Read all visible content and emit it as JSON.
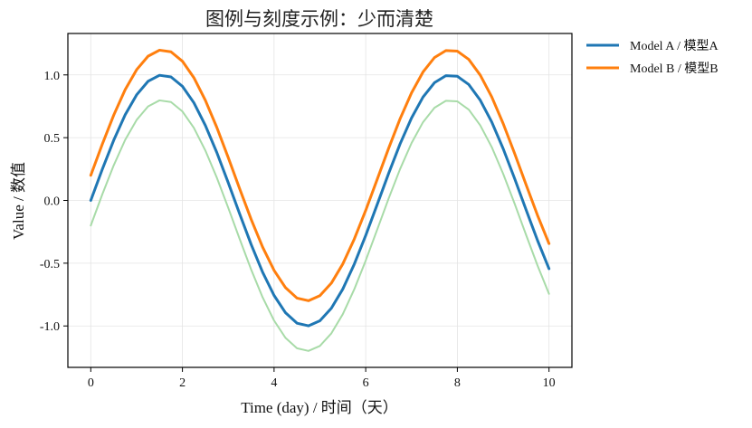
{
  "chart_data": {
    "type": "line",
    "title": "图例与刻度示例：少而清楚",
    "xlabel": "Time (day) / 时间（天）",
    "ylabel": "Value / 数值",
    "xlim": [
      -0.5,
      10.5
    ],
    "ylim": [
      -1.33,
      1.33
    ],
    "xticks": [
      0,
      2,
      4,
      6,
      8,
      10
    ],
    "xtick_labels": [
      "0",
      "2",
      "4",
      "6",
      "8",
      "10"
    ],
    "yticks": [
      -1.0,
      -0.5,
      0.0,
      0.5,
      1.0
    ],
    "ytick_labels": [
      "-1.0",
      "-0.5",
      "0.0",
      "0.5",
      "1.0"
    ],
    "grid": true,
    "legend_position": "outside-top-right",
    "series": [
      {
        "name": "Model A / 模型A",
        "color": "#1f77b4",
        "in_legend": true,
        "x": [
          0,
          0.25,
          0.5,
          0.75,
          1,
          1.25,
          1.5,
          1.75,
          2,
          2.25,
          2.5,
          2.75,
          3,
          3.25,
          3.5,
          3.75,
          4,
          4.25,
          4.5,
          4.75,
          5,
          5.25,
          5.5,
          5.75,
          6,
          6.25,
          6.5,
          6.75,
          7,
          7.25,
          7.5,
          7.75,
          8,
          8.25,
          8.5,
          8.75,
          9,
          9.25,
          9.5,
          9.75,
          10
        ],
        "y": [
          0.0,
          0.247,
          0.479,
          0.682,
          0.841,
          0.949,
          0.997,
          0.984,
          0.909,
          0.778,
          0.598,
          0.382,
          0.141,
          -0.108,
          -0.351,
          -0.572,
          -0.757,
          -0.895,
          -0.978,
          -0.999,
          -0.959,
          -0.859,
          -0.706,
          -0.508,
          -0.279,
          -0.033,
          0.215,
          0.45,
          0.657,
          0.823,
          0.938,
          0.994,
          0.989,
          0.923,
          0.798,
          0.625,
          0.412,
          0.174,
          -0.075,
          -0.319,
          -0.544
        ]
      },
      {
        "name": "Model B / 模型B",
        "color": "#ff7f0e",
        "in_legend": true,
        "x": [
          0,
          0.25,
          0.5,
          0.75,
          1,
          1.25,
          1.5,
          1.75,
          2,
          2.25,
          2.5,
          2.75,
          3,
          3.25,
          3.5,
          3.75,
          4,
          4.25,
          4.5,
          4.75,
          5,
          5.25,
          5.5,
          5.75,
          6,
          6.25,
          6.5,
          6.75,
          7,
          7.25,
          7.5,
          7.75,
          8,
          8.25,
          8.5,
          8.75,
          9,
          9.25,
          9.5,
          9.75,
          10
        ],
        "y": [
          0.2,
          0.447,
          0.679,
          0.882,
          1.041,
          1.149,
          1.197,
          1.184,
          1.109,
          0.978,
          0.798,
          0.582,
          0.341,
          0.092,
          -0.151,
          -0.372,
          -0.557,
          -0.695,
          -0.778,
          -0.799,
          -0.759,
          -0.659,
          -0.506,
          -0.308,
          -0.079,
          0.167,
          0.415,
          0.65,
          0.857,
          1.023,
          1.138,
          1.194,
          1.189,
          1.123,
          0.998,
          0.825,
          0.612,
          0.374,
          0.125,
          -0.119,
          -0.344
        ]
      },
      {
        "color": "#a8dba8",
        "in_legend": false,
        "x": [
          0,
          0.25,
          0.5,
          0.75,
          1,
          1.25,
          1.5,
          1.75,
          2,
          2.25,
          2.5,
          2.75,
          3,
          3.25,
          3.5,
          3.75,
          4,
          4.25,
          4.5,
          4.75,
          5,
          5.25,
          5.5,
          5.75,
          6,
          6.25,
          6.5,
          6.75,
          7,
          7.25,
          7.5,
          7.75,
          8,
          8.25,
          8.5,
          8.75,
          9,
          9.25,
          9.5,
          9.75,
          10
        ],
        "y": [
          -0.2,
          0.047,
          0.279,
          0.482,
          0.641,
          0.749,
          0.797,
          0.784,
          0.709,
          0.578,
          0.398,
          0.182,
          -0.059,
          -0.308,
          -0.551,
          -0.772,
          -0.957,
          -1.095,
          -1.178,
          -1.199,
          -1.159,
          -1.059,
          -0.906,
          -0.708,
          -0.479,
          -0.233,
          0.015,
          0.25,
          0.457,
          0.623,
          0.738,
          0.794,
          0.789,
          0.723,
          0.598,
          0.425,
          0.212,
          -0.026,
          -0.275,
          -0.519,
          -0.744
        ]
      }
    ]
  }
}
